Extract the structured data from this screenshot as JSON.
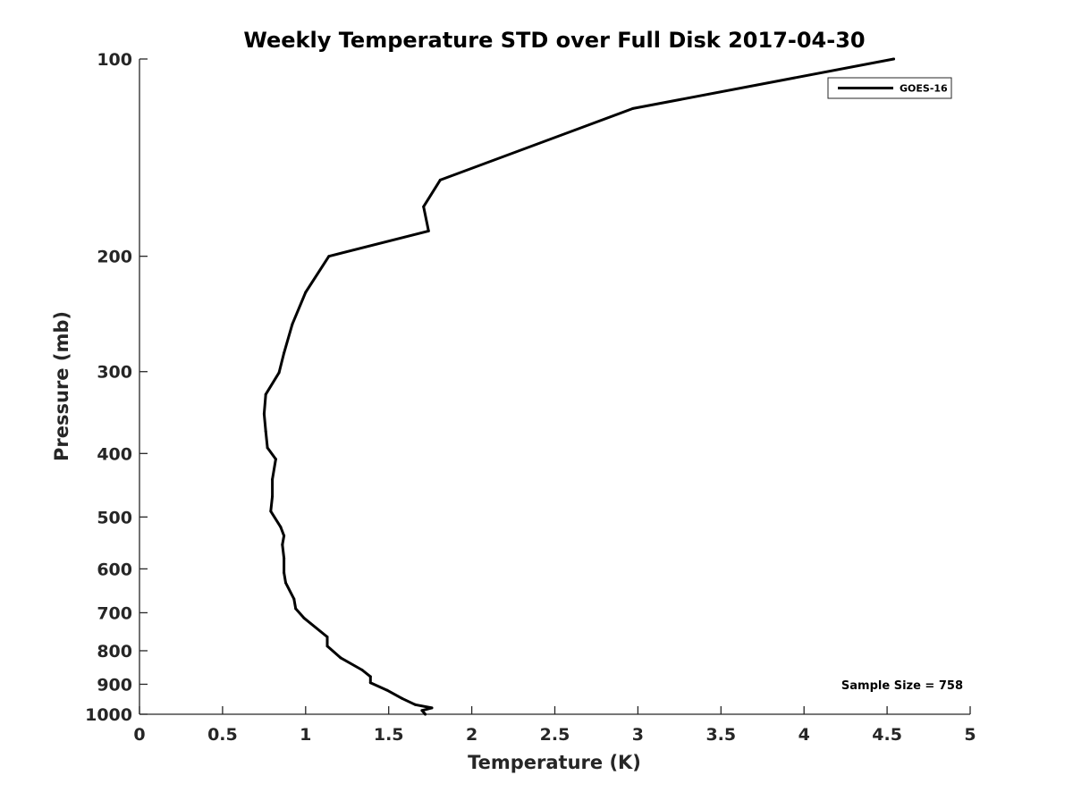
{
  "chart_data": {
    "type": "line",
    "title": "Weekly Temperature STD over Full Disk 2017-04-30",
    "xlabel": "Temperature (K)",
    "ylabel": "Pressure (mb)",
    "xlim": [
      0,
      5
    ],
    "ylim": [
      1000,
      100
    ],
    "yscale": "log",
    "y_reversed": true,
    "grid": false,
    "legend_position": "top-right",
    "xticks": [
      "0",
      "0.5",
      "1",
      "1.5",
      "2",
      "2.5",
      "3",
      "3.5",
      "4",
      "4.5",
      "5"
    ],
    "xtick_values": [
      0,
      0.5,
      1,
      1.5,
      2,
      2.5,
      3,
      3.5,
      4,
      4.5,
      5
    ],
    "yticks": [
      "100",
      "200",
      "300",
      "400",
      "500",
      "600",
      "700",
      "800",
      "900",
      "1000"
    ],
    "ytick_values": [
      100,
      200,
      300,
      400,
      500,
      600,
      700,
      800,
      900,
      1000
    ],
    "annotation": "Sample Size = 758",
    "series": [
      {
        "name": "GOES-16",
        "color": "#000000",
        "x": [
          4.54,
          2.97,
          1.81,
          1.71,
          1.74,
          1.14,
          1.0,
          0.92,
          0.87,
          0.84,
          0.76,
          0.75,
          0.76,
          0.77,
          0.82,
          0.8,
          0.8,
          0.79,
          0.85,
          0.87,
          0.86,
          0.87,
          0.87,
          0.88,
          0.93,
          0.94,
          0.99,
          1.13,
          1.13,
          1.21,
          1.34,
          1.39,
          1.39,
          1.49,
          1.58,
          1.66,
          1.76,
          1.7,
          1.72
        ],
        "y": [
          100,
          119,
          153,
          168,
          183,
          200,
          227,
          254,
          281,
          301,
          325,
          348,
          370,
          392,
          408,
          438,
          465,
          490,
          518,
          534,
          551,
          578,
          608,
          630,
          667,
          690,
          713,
          762,
          787,
          820,
          856,
          876,
          895,
          919,
          946,
          967,
          978,
          987,
          1000
        ]
      }
    ]
  }
}
